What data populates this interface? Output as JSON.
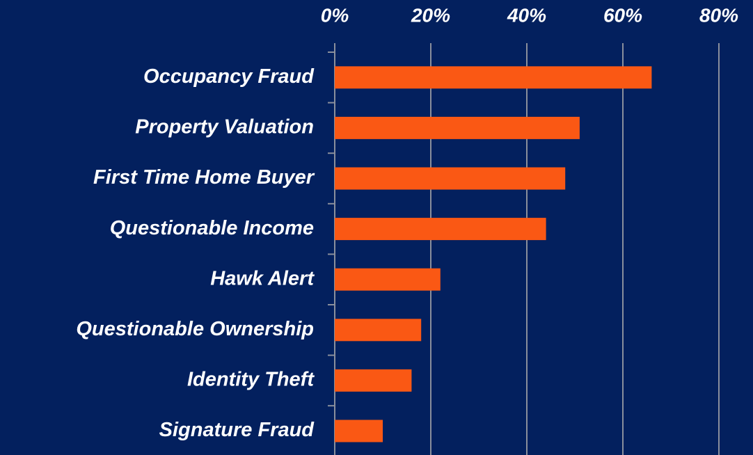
{
  "chart_data": {
    "type": "bar",
    "orientation": "horizontal",
    "categories": [
      "Occupancy Fraud",
      "Property Valuation",
      "First Time Home Buyer",
      "Questionable Income",
      "Hawk Alert",
      "Questionable Ownership",
      "Identity Theft",
      "Signature Fraud"
    ],
    "values": [
      66,
      51,
      48,
      44,
      22,
      18,
      16,
      10
    ],
    "color": "#fa5814",
    "xlim": [
      0,
      80
    ],
    "xticks": [
      {
        "value": 0,
        "label": "0%"
      },
      {
        "value": 20,
        "label": "20%"
      },
      {
        "value": 40,
        "label": "40%"
      },
      {
        "value": 60,
        "label": "60%"
      },
      {
        "value": 80,
        "label": "80%"
      }
    ],
    "grid": true
  }
}
